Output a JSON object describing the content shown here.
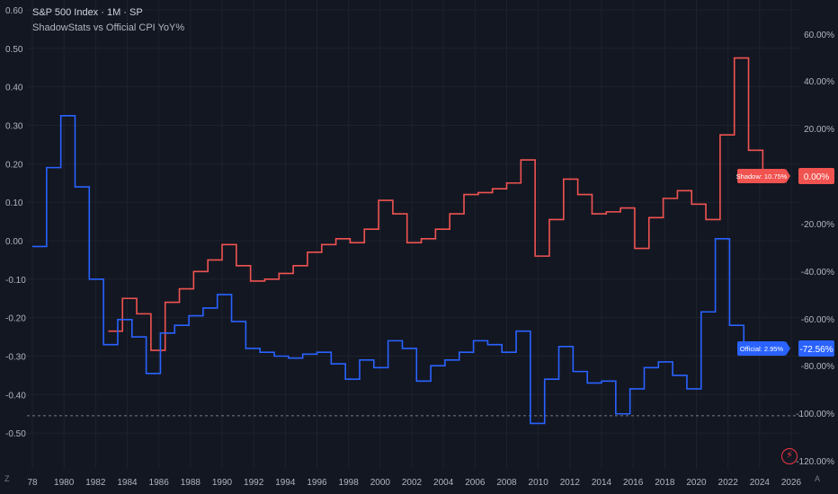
{
  "header": {
    "title": "S&P 500 Index · 1M · SP",
    "subtitle": "ShadowStats vs Official CPI YoY%"
  },
  "corner_left": "Z",
  "corner_right": "A",
  "icons": {
    "quick_action": "lightning-icon"
  },
  "colors": {
    "shadow": "#f05350",
    "official": "#2962ff",
    "background": "#131722"
  },
  "chart_data": {
    "type": "line",
    "title": "S&P 500 Index · 1M · SP",
    "subtitle": "ShadowStats vs Official CPI YoY%",
    "left_axis": {
      "ticks": [
        "0.60",
        "0.50",
        "0.40",
        "0.30",
        "0.20",
        "0.10",
        "0.00",
        "-0.10",
        "-0.20",
        "-0.30",
        "-0.40",
        "-0.50"
      ],
      "range": [
        -0.55,
        0.6
      ]
    },
    "right_axis": {
      "ticks": [
        "60.00%",
        "40.00%",
        "20.00%",
        "0.00%",
        "-20.00%",
        "-40.00%",
        "-60.00%",
        "-80.00%",
        "-100.00%",
        "-120.00%"
      ]
    },
    "x_ticks": [
      "78",
      "1980",
      "1982",
      "1984",
      "1986",
      "1988",
      "1990",
      "1992",
      "1994",
      "1996",
      "1998",
      "2000",
      "2002",
      "2004",
      "2006",
      "2008",
      "2010",
      "2012",
      "2014",
      "2016",
      "2018",
      "2020",
      "2022",
      "2024",
      "2026"
    ],
    "x_range": [
      1978,
      2026
    ],
    "dashed_level": -0.455,
    "series": [
      {
        "name": "Shadow",
        "color": "#f05350",
        "label": "Shadow: 10.75%",
        "last_value": "0.00%",
        "points": [
          [
            1982.8,
            -0.235
          ],
          [
            1983.7,
            -0.15
          ],
          [
            1984.6,
            -0.19
          ],
          [
            1985.5,
            -0.285
          ],
          [
            1986.4,
            -0.16
          ],
          [
            1987.3,
            -0.125
          ],
          [
            1988.2,
            -0.08
          ],
          [
            1989.1,
            -0.05
          ],
          [
            1990,
            -0.01
          ],
          [
            1990.9,
            -0.065
          ],
          [
            1991.8,
            -0.105
          ],
          [
            1992.7,
            -0.1
          ],
          [
            1993.6,
            -0.085
          ],
          [
            1994.5,
            -0.065
          ],
          [
            1995.4,
            -0.03
          ],
          [
            1996.3,
            -0.01
          ],
          [
            1997.2,
            0.005
          ],
          [
            1998.1,
            -0.005
          ],
          [
            1999,
            0.03
          ],
          [
            1999.9,
            0.105
          ],
          [
            2000.8,
            0.07
          ],
          [
            2001.7,
            -0.005
          ],
          [
            2002.6,
            0.005
          ],
          [
            2003.5,
            0.03
          ],
          [
            2004.4,
            0.07
          ],
          [
            2005.3,
            0.12
          ],
          [
            2006.2,
            0.125
          ],
          [
            2007.1,
            0.135
          ],
          [
            2008,
            0.15
          ],
          [
            2008.9,
            0.21
          ],
          [
            2009.8,
            -0.04
          ],
          [
            2010.7,
            0.055
          ],
          [
            2011.6,
            0.16
          ],
          [
            2012.5,
            0.12
          ],
          [
            2013.4,
            0.07
          ],
          [
            2014.3,
            0.075
          ],
          [
            2015.2,
            0.085
          ],
          [
            2016.1,
            -0.02
          ],
          [
            2017,
            0.06
          ],
          [
            2017.9,
            0.11
          ],
          [
            2018.8,
            0.13
          ],
          [
            2019.7,
            0.095
          ],
          [
            2020.6,
            0.055
          ],
          [
            2021.5,
            0.275
          ],
          [
            2022.4,
            0.475
          ],
          [
            2023.3,
            0.235
          ],
          [
            2024.2,
            0.175
          ]
        ]
      },
      {
        "name": "Official",
        "color": "#2962ff",
        "label": "Official: 2.95%",
        "last_value": "-72.56%",
        "points": [
          [
            1978,
            -0.015
          ],
          [
            1978.9,
            0.19
          ],
          [
            1979.8,
            0.325
          ],
          [
            1980.7,
            0.14
          ],
          [
            1981.6,
            -0.1
          ],
          [
            1982.5,
            -0.27
          ],
          [
            1983.4,
            -0.205
          ],
          [
            1984.3,
            -0.25
          ],
          [
            1985.2,
            -0.345
          ],
          [
            1986.1,
            -0.24
          ],
          [
            1987,
            -0.22
          ],
          [
            1987.9,
            -0.195
          ],
          [
            1988.8,
            -0.175
          ],
          [
            1989.7,
            -0.14
          ],
          [
            1990.6,
            -0.21
          ],
          [
            1991.5,
            -0.28
          ],
          [
            1992.4,
            -0.29
          ],
          [
            1993.3,
            -0.3
          ],
          [
            1994.2,
            -0.305
          ],
          [
            1995.1,
            -0.295
          ],
          [
            1996,
            -0.29
          ],
          [
            1996.9,
            -0.32
          ],
          [
            1997.8,
            -0.36
          ],
          [
            1998.7,
            -0.31
          ],
          [
            1999.6,
            -0.33
          ],
          [
            2000.5,
            -0.26
          ],
          [
            2001.4,
            -0.28
          ],
          [
            2002.3,
            -0.365
          ],
          [
            2003.2,
            -0.325
          ],
          [
            2004.1,
            -0.31
          ],
          [
            2005,
            -0.29
          ],
          [
            2005.9,
            -0.26
          ],
          [
            2006.8,
            -0.27
          ],
          [
            2007.7,
            -0.29
          ],
          [
            2008.6,
            -0.235
          ],
          [
            2009.5,
            -0.475
          ],
          [
            2010.4,
            -0.36
          ],
          [
            2011.3,
            -0.275
          ],
          [
            2012.2,
            -0.34
          ],
          [
            2013.1,
            -0.37
          ],
          [
            2014,
            -0.365
          ],
          [
            2014.9,
            -0.45
          ],
          [
            2015.8,
            -0.385
          ],
          [
            2016.7,
            -0.33
          ],
          [
            2017.6,
            -0.315
          ],
          [
            2018.5,
            -0.35
          ],
          [
            2019.4,
            -0.385
          ],
          [
            2020.3,
            -0.185
          ],
          [
            2021.2,
            0.005
          ],
          [
            2022.1,
            -0.22
          ],
          [
            2023,
            -0.27
          ],
          [
            2023.9,
            -0.29
          ]
        ]
      }
    ],
    "grid": true
  }
}
